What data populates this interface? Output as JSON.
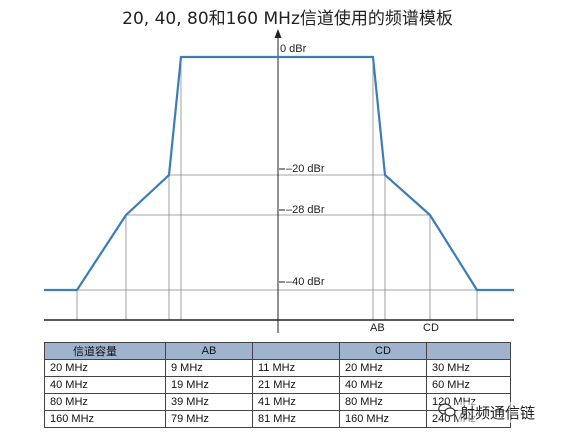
{
  "title": "20, 40, 80和160 MHz信道使用的频谱模板",
  "chart_data": {
    "type": "line",
    "x_markers": [
      "AB",
      "CD"
    ],
    "y_levels": [
      "0 dBr",
      "–20 dBr",
      "–28 dBr",
      "–40 dBr"
    ]
  },
  "table": {
    "headers": [
      "信道容量",
      "AB",
      "",
      "CD",
      ""
    ],
    "rows": [
      [
        "20 MHz",
        "9 MHz",
        "11 MHz",
        "20 MHz",
        "30 MHz"
      ],
      [
        "40 MHz",
        "19 MHz",
        "21 MHz",
        "40 MHz",
        "60 MHz"
      ],
      [
        "80 MHz",
        "39 MHz",
        "41 MHz",
        "80 MHz",
        "120 MHz"
      ],
      [
        "160 MHz",
        "79 MHz",
        "81 MHz",
        "160 MHz",
        "240 MHz"
      ]
    ]
  },
  "watermark": "射频通信链",
  "colors": {
    "mask_line": "#3c7db8",
    "grid": "#888888",
    "axis": "#222222",
    "header_bg": "#9fb3cf"
  }
}
